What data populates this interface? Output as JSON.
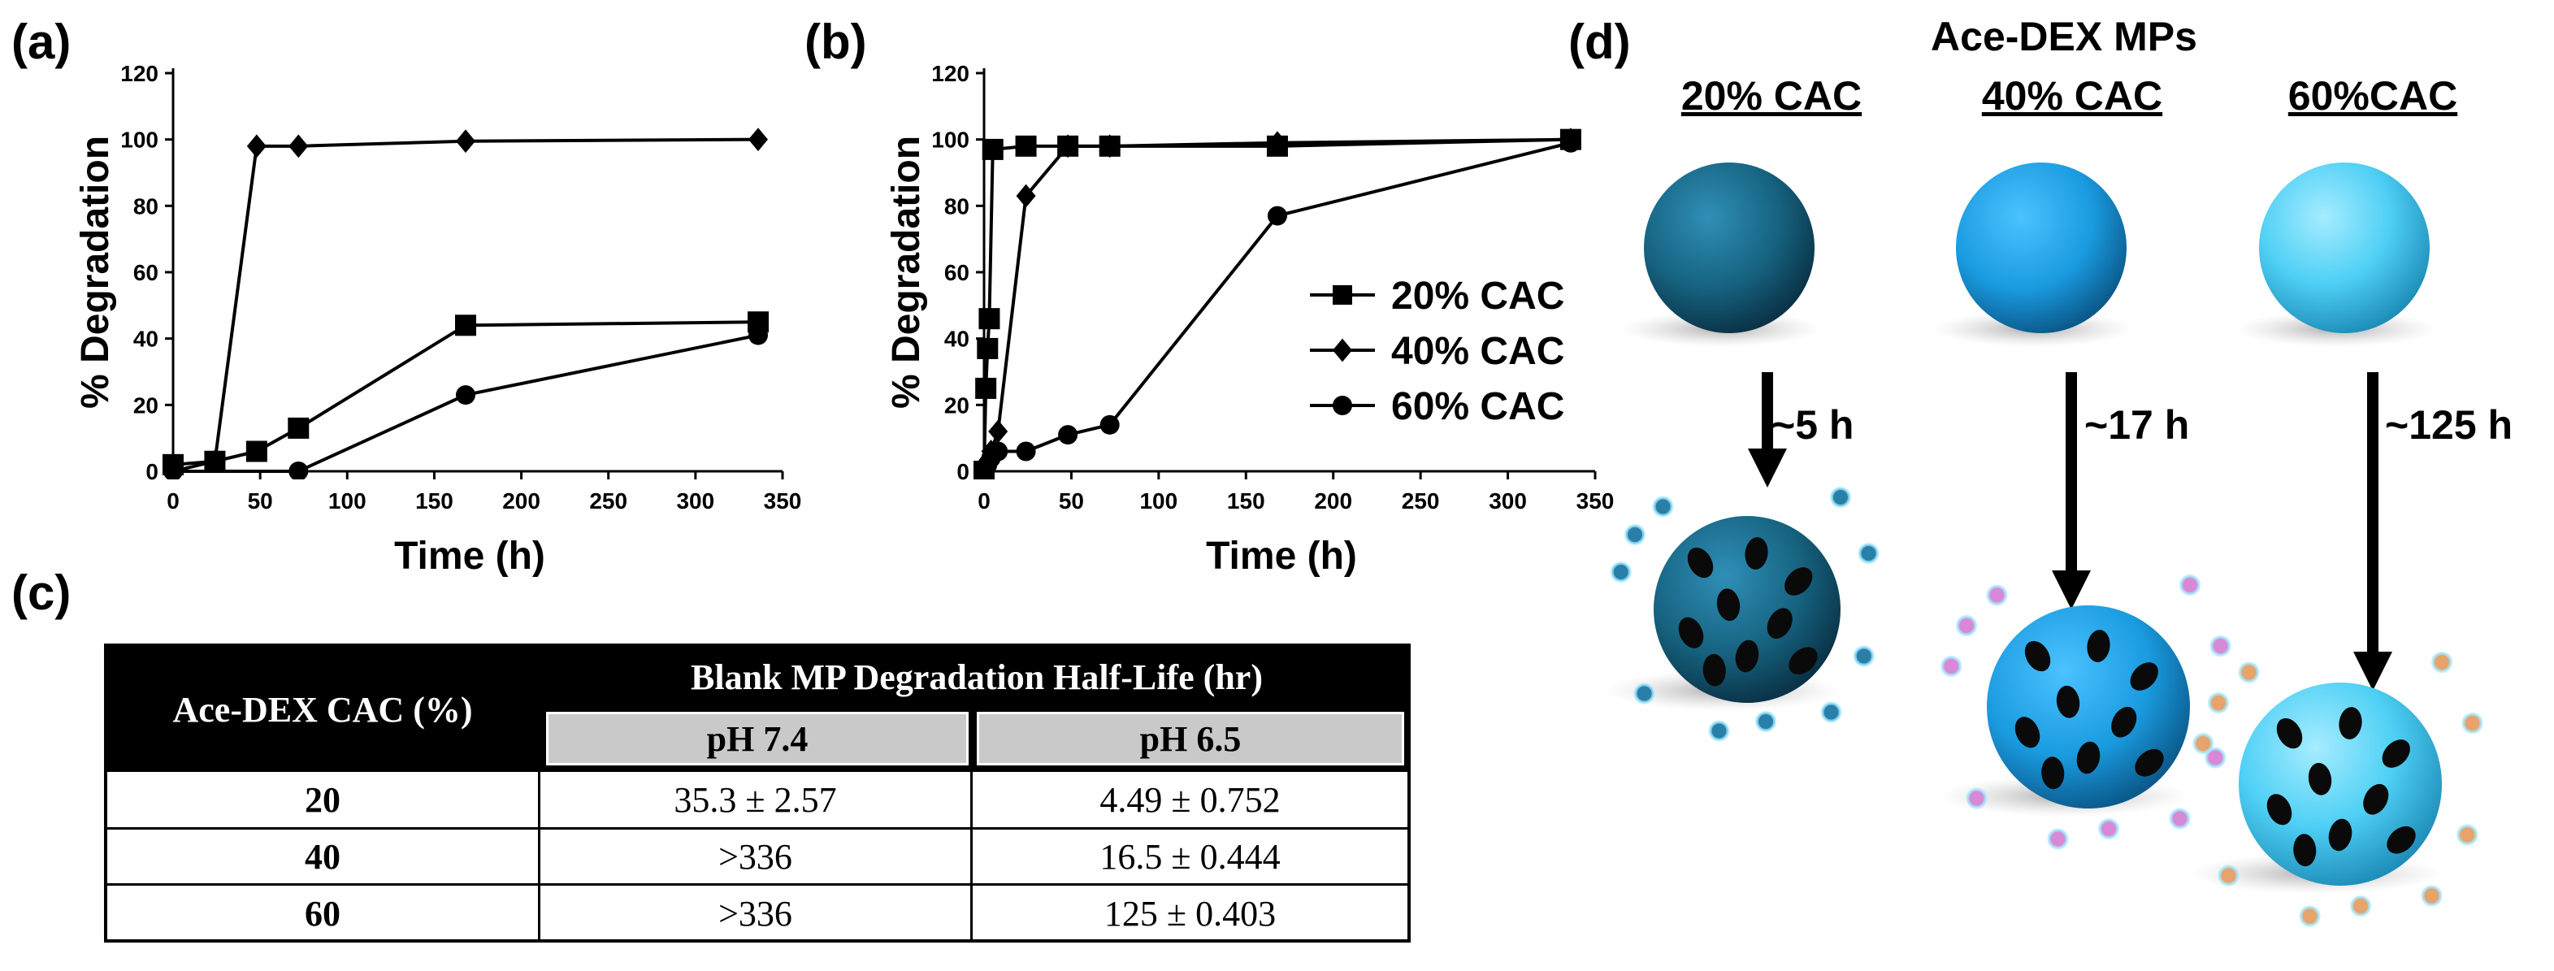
{
  "panel_labels": {
    "a": "(a)",
    "b": "(b)",
    "c": "(c)",
    "d": "(d)"
  },
  "chart_data": [
    {
      "panel": "(a)",
      "type": "line",
      "title": "",
      "xlabel": "Time (h)",
      "ylabel": "% Degradation",
      "xlim": [
        0,
        350
      ],
      "ylim": [
        0,
        120
      ],
      "xticks": [
        "0",
        "50",
        "100",
        "150",
        "200",
        "250",
        "300",
        "350"
      ],
      "yticks": [
        "0",
        "20",
        "40",
        "60",
        "80",
        "100",
        "120"
      ],
      "series": [
        {
          "name": "20% CAC",
          "marker": "square",
          "x": [
            0,
            24,
            48,
            72,
            168,
            336
          ],
          "y": [
            2,
            3,
            6,
            13,
            44,
            45
          ]
        },
        {
          "name": "40% CAC",
          "marker": "diamond",
          "x": [
            0,
            24,
            48,
            72,
            168,
            336
          ],
          "y": [
            0,
            3,
            98,
            98,
            99.5,
            100
          ]
        },
        {
          "name": "60% CAC",
          "marker": "circle",
          "x": [
            0,
            72,
            168,
            336
          ],
          "y": [
            0,
            0,
            23,
            41
          ]
        }
      ]
    },
    {
      "panel": "(b)",
      "type": "line",
      "title": "",
      "xlabel": "Time (h)",
      "ylabel": "% Degradation",
      "xlim": [
        0,
        350
      ],
      "ylim": [
        0,
        120
      ],
      "xticks": [
        "0",
        "50",
        "100",
        "150",
        "200",
        "250",
        "300",
        "350"
      ],
      "yticks": [
        "0",
        "20",
        "40",
        "60",
        "80",
        "100",
        "120"
      ],
      "legend": {
        "placement": "center-right",
        "entries": [
          "20% CAC",
          "40% CAC",
          "60% CAC"
        ]
      },
      "series": [
        {
          "name": "20% CAC",
          "marker": "square",
          "x": [
            0,
            1,
            2,
            3,
            5,
            24,
            48,
            72,
            168,
            336
          ],
          "y": [
            0,
            25,
            37,
            46,
            97,
            98,
            98,
            98,
            98,
            100
          ]
        },
        {
          "name": "40% CAC",
          "marker": "diamond",
          "x": [
            0,
            2,
            4,
            8,
            24,
            48,
            72,
            168,
            336
          ],
          "y": [
            0,
            3,
            6,
            12,
            83,
            98,
            98,
            99,
            100
          ]
        },
        {
          "name": "60% CAC",
          "marker": "circle",
          "x": [
            0,
            1,
            2,
            4,
            8,
            24,
            48,
            72,
            168,
            336
          ],
          "y": [
            0,
            1,
            2,
            4,
            6,
            6,
            11,
            14,
            77,
            99
          ]
        }
      ]
    }
  ],
  "table": {
    "col1_header": "Ace-DEX CAC (%)",
    "group_header": "Blank MP Degradation Half-Life (hr)",
    "subheaders": [
      "pH 7.4",
      "pH 6.5"
    ],
    "rows": [
      [
        "20",
        "35.3 ± 2.57",
        "4.49 ± 0.752"
      ],
      [
        "40",
        ">336",
        "16.5 ± 0.444"
      ],
      [
        "60",
        ">336",
        "125 ± 0.403"
      ]
    ]
  },
  "diagram": {
    "title": "Ace-DEX MPs",
    "columns": [
      {
        "label": "20% CAC",
        "time": "~5 h",
        "color": "#1a6e93",
        "fragment_color": "#2a7fa8"
      },
      {
        "label": "40% CAC",
        "time": "~17 h",
        "color": "#1b9ee0",
        "fragment_color": "#d889d6"
      },
      {
        "label": "60%CAC",
        "time": "~125 h",
        "color": "#52d1f5",
        "fragment_color": "#e6a36b"
      }
    ]
  }
}
